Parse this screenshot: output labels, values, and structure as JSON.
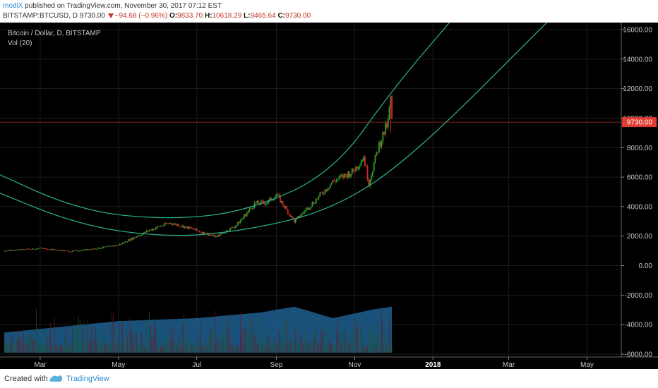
{
  "header": {
    "author": "modiX",
    "published": "published on TradingView.com, November 30, 2017 07:12 EST",
    "symbol": "BITSTAMP:BTCUSD, D",
    "last": "9730.00",
    "change": "−94.68 (−0.96%)",
    "o_label": "O:",
    "o_value": "9833.70",
    "h_label": "H:",
    "h_value": "10618.29",
    "l_label": "L:",
    "l_value": "9465.64",
    "c_label": "C:",
    "c_value": "9730.00"
  },
  "legend": {
    "title": "Bitcoin / Dollar, D, BITSTAMP",
    "volume": "Vol (20)"
  },
  "footer": {
    "created_with": "Created with",
    "brand": "TradingView"
  },
  "colors": {
    "up": "#2ca02c",
    "down": "#d62728",
    "curve": "#2bb38a",
    "volume": "#1f5f8f",
    "price_line": "#c0392b",
    "price_tag": "#e03c31"
  },
  "chart_data": {
    "type": "candlestick",
    "y_ticks": [
      "16000.00",
      "14000.00",
      "12000.00",
      "10000.00",
      "8000.00",
      "6000.00",
      "4000.00",
      "2000.00",
      "0.00",
      "-2000.00",
      "-4000.00",
      "-6000.00"
    ],
    "ylim": [
      -6000,
      16000
    ],
    "x_ticks": [
      "Mar",
      "May",
      "Jul",
      "Sep",
      "Nov",
      "2018",
      "Mar",
      "May"
    ],
    "current_price": "9730.00",
    "price_path": [
      [
        "2017-02-01",
        1000
      ],
      [
        "2017-03-01",
        1180
      ],
      [
        "2017-03-25",
        960
      ],
      [
        "2017-04-15",
        1180
      ],
      [
        "2017-05-01",
        1400
      ],
      [
        "2017-05-25",
        2400
      ],
      [
        "2017-06-10",
        2900
      ],
      [
        "2017-06-25",
        2550
      ],
      [
        "2017-07-16",
        1950
      ],
      [
        "2017-08-01",
        2750
      ],
      [
        "2017-08-15",
        4200
      ],
      [
        "2017-08-25",
        4300
      ],
      [
        "2017-09-01",
        4800
      ],
      [
        "2017-09-15",
        3000
      ],
      [
        "2017-09-30",
        4300
      ],
      [
        "2017-10-15",
        5700
      ],
      [
        "2017-10-31",
        6400
      ],
      [
        "2017-11-08",
        7400
      ],
      [
        "2017-11-12",
        5600
      ],
      [
        "2017-11-20",
        8200
      ],
      [
        "2017-11-27",
        9700
      ],
      [
        "2017-11-29",
        11400
      ],
      [
        "2017-11-30",
        9730
      ]
    ],
    "volume_shape": [
      [
        "2017-02-01",
        0.35
      ],
      [
        "2017-05-01",
        0.55
      ],
      [
        "2017-07-01",
        0.6
      ],
      [
        "2017-08-20",
        0.7
      ],
      [
        "2017-09-15",
        0.8
      ],
      [
        "2017-10-15",
        0.6
      ],
      [
        "2017-11-15",
        0.75
      ],
      [
        "2017-11-30",
        0.8
      ]
    ],
    "curves": [
      {
        "points": [
          [
            "2017-01-15",
            6700
          ],
          [
            "2017-04-01",
            3700
          ],
          [
            "2017-06-10",
            3100
          ],
          [
            "2017-08-10",
            3700
          ],
          [
            "2017-10-15",
            6300
          ],
          [
            "2017-12-01",
            12000
          ],
          [
            "2018-01-15",
            16600
          ]
        ]
      },
      {
        "points": [
          [
            "2017-01-15",
            5400
          ],
          [
            "2017-04-01",
            2700
          ],
          [
            "2017-06-10",
            1900
          ],
          [
            "2017-08-10",
            2400
          ],
          [
            "2017-10-15",
            3800
          ],
          [
            "2017-12-15",
            7300
          ],
          [
            "2018-04-01",
            16600
          ]
        ]
      }
    ]
  }
}
